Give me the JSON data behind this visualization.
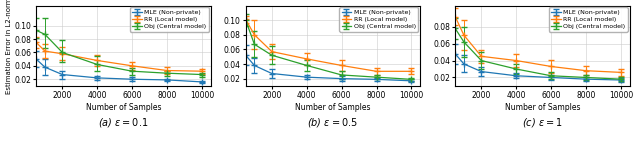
{
  "x": [
    500,
    1000,
    2000,
    4000,
    6000,
    8000,
    10000
  ],
  "eps01": {
    "mle_mean": [
      0.05,
      0.038,
      0.027,
      0.022,
      0.02,
      0.019,
      0.016
    ],
    "mle_lo": [
      0.012,
      0.012,
      0.006,
      0.003,
      0.003,
      0.002,
      0.002
    ],
    "mle_hi": [
      0.012,
      0.012,
      0.006,
      0.003,
      0.003,
      0.002,
      0.002
    ],
    "rr_mean": [
      0.075,
      0.062,
      0.058,
      0.048,
      0.04,
      0.033,
      0.032
    ],
    "rr_lo": [
      0.008,
      0.01,
      0.01,
      0.008,
      0.006,
      0.005,
      0.004
    ],
    "rr_hi": [
      0.008,
      0.01,
      0.01,
      0.008,
      0.006,
      0.005,
      0.004
    ],
    "obj_mean": [
      0.093,
      0.087,
      0.06,
      0.042,
      0.032,
      0.029,
      0.027
    ],
    "obj_lo": [
      0.012,
      0.02,
      0.015,
      0.01,
      0.005,
      0.004,
      0.003
    ],
    "obj_hi": [
      0.018,
      0.025,
      0.018,
      0.012,
      0.005,
      0.004,
      0.003
    ],
    "ylim": [
      0.01,
      0.13
    ],
    "yticks": [
      0.02,
      0.04,
      0.06,
      0.08,
      0.1
    ],
    "subtitle": "(a) $\\varepsilon=0.1$"
  },
  "eps05": {
    "mle_mean": [
      0.052,
      0.038,
      0.027,
      0.022,
      0.02,
      0.019,
      0.017
    ],
    "mle_lo": [
      0.014,
      0.01,
      0.006,
      0.003,
      0.003,
      0.002,
      0.002
    ],
    "mle_hi": [
      0.014,
      0.01,
      0.006,
      0.003,
      0.003,
      0.002,
      0.002
    ],
    "rr_mean": [
      0.101,
      0.08,
      0.057,
      0.047,
      0.038,
      0.03,
      0.03
    ],
    "rr_lo": [
      0.005,
      0.02,
      0.01,
      0.008,
      0.008,
      0.005,
      0.004
    ],
    "rr_hi": [
      0.005,
      0.02,
      0.01,
      0.008,
      0.008,
      0.005,
      0.004
    ],
    "obj_mean": [
      0.1,
      0.067,
      0.052,
      0.038,
      0.025,
      0.022,
      0.019
    ],
    "obj_lo": [
      0.008,
      0.018,
      0.012,
      0.008,
      0.005,
      0.003,
      0.002
    ],
    "obj_hi": [
      0.008,
      0.018,
      0.012,
      0.008,
      0.005,
      0.003,
      0.002
    ],
    "ylim": [
      0.01,
      0.12
    ],
    "yticks": [
      0.02,
      0.04,
      0.06,
      0.08,
      0.1
    ],
    "subtitle": "(b) $\\varepsilon=0.5$"
  },
  "eps1": {
    "mle_mean": [
      0.048,
      0.036,
      0.027,
      0.022,
      0.02,
      0.018,
      0.017
    ],
    "mle_lo": [
      0.012,
      0.01,
      0.005,
      0.003,
      0.003,
      0.002,
      0.002
    ],
    "mle_hi": [
      0.012,
      0.01,
      0.005,
      0.003,
      0.003,
      0.002,
      0.002
    ],
    "rr_mean": [
      0.092,
      0.07,
      0.045,
      0.04,
      0.033,
      0.028,
      0.026
    ],
    "rr_lo": [
      0.01,
      0.018,
      0.008,
      0.008,
      0.008,
      0.005,
      0.004
    ],
    "rr_hi": [
      0.01,
      0.018,
      0.008,
      0.008,
      0.008,
      0.005,
      0.004
    ],
    "obj_mean": [
      0.078,
      0.062,
      0.04,
      0.03,
      0.022,
      0.02,
      0.018
    ],
    "obj_lo": [
      0.012,
      0.018,
      0.01,
      0.006,
      0.004,
      0.003,
      0.002
    ],
    "obj_hi": [
      0.012,
      0.018,
      0.01,
      0.006,
      0.004,
      0.003,
      0.002
    ],
    "ylim": [
      0.01,
      0.105
    ],
    "yticks": [
      0.02,
      0.04,
      0.06,
      0.08
    ],
    "subtitle": "(c) $\\varepsilon=1$"
  },
  "color_mle": "#1f77b4",
  "color_rr": "#ff7f0e",
  "color_obj": "#2ca02c",
  "xlabel": "Number of Samples",
  "ylabel": "Estimation Error in L2-norm",
  "legend_labels": [
    "MLE (Non-private)",
    "RR (Local model)",
    "Obj (Central model)"
  ],
  "xticks": [
    2000,
    4000,
    6000,
    8000,
    10000
  ],
  "figsize": [
    6.4,
    1.52
  ],
  "dpi": 100
}
